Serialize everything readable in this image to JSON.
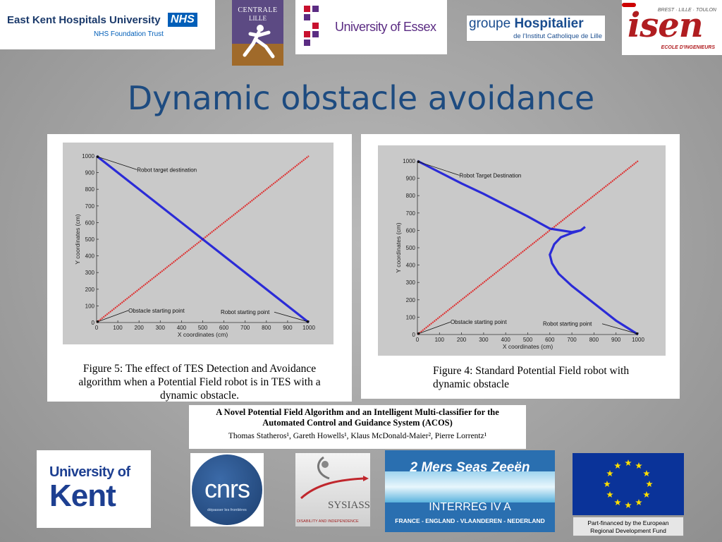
{
  "slide": {
    "title": "Dynamic obstacle avoidance"
  },
  "top_logos": {
    "ekhu": {
      "line1": "East Kent Hospitals University",
      "badge": "NHS",
      "line2": "NHS Foundation Trust"
    },
    "centrale": {
      "line1": "CENTRALE",
      "line2": "LILLE"
    },
    "essex": {
      "name": "University of Essex"
    },
    "ghicl": {
      "line1a": "groupe",
      "line1b": "Hospitalier",
      "line2": "de l'Institut Catholique de Lille"
    },
    "isen": {
      "tag": "BREST · LILLE · TOULON",
      "name": "isen",
      "sub": "ECOLE D'INGENIEURS"
    }
  },
  "figure_left": {
    "caption": [
      "Figure 5: The effect of TES Detection and Avoidance",
      "algorithm when a Potential Field robot is in TES with a",
      "dynamic obstacle."
    ],
    "xlabel": "X coordinates (cm)",
    "ylabel": "Y coordinates (cm)",
    "annotations": {
      "target": "Robot target destination",
      "obstacle": "Obstacle starting point",
      "robot": "Robot starting point"
    }
  },
  "figure_right": {
    "caption": [
      "Figure 4: Standard Potential Field robot with",
      "dynamic obstacle"
    ],
    "xlabel": "X coordinates (cm)",
    "ylabel": "Y coordinates (cm)",
    "annotations": {
      "target": "Robot Target Destination",
      "obstacle": "Obstacle starting point",
      "robot": "Robot starting point"
    }
  },
  "paper": {
    "title_line1": "A Novel Potential Field Algorithm and an Intelligent Multi-classifier for the",
    "title_line2": "Automated Control and Guidance System (ACOS)",
    "authors": "Thomas Statheros¹, Gareth Howells¹, Klaus McDonald-Maier², Pierre Lorrentz¹"
  },
  "bottom_logos": {
    "kent": {
      "line1": "University of",
      "line2": "Kent"
    },
    "cnrs": {
      "name": "cnrs",
      "tag": "dépasser les frontières"
    },
    "sysiass": {
      "name": "SYSIASS",
      "tag": "DISABILITY AND INDEPENDENCE"
    },
    "interreg": {
      "line1": "2 Mers Seas Zeeën",
      "line2": "INTERREG IV A",
      "line3": "FRANCE - ENGLAND - VLAANDEREN - NEDERLAND"
    },
    "eu": {
      "caption_line1": "Part-financed by the European",
      "caption_line2": "Regional Development Fund"
    }
  },
  "chart_data": [
    {
      "type": "line",
      "title": "",
      "xlabel": "X coordinates (cm)",
      "ylabel": "Y coordinates (cm)",
      "xlim": [
        0,
        1000
      ],
      "ylim": [
        0,
        1000
      ],
      "xticks": [
        0,
        100,
        200,
        300,
        400,
        500,
        600,
        700,
        800,
        900,
        1000
      ],
      "yticks": [
        0,
        100,
        200,
        300,
        400,
        500,
        600,
        700,
        800,
        900,
        1000
      ],
      "series": [
        {
          "color": "#e02020",
          "x": [
            0,
            1000
          ],
          "y": [
            0,
            1000
          ]
        },
        {
          "color": "#1a1ad8",
          "x": [
            1000,
            500,
            0
          ],
          "y": [
            0,
            500,
            1000
          ]
        }
      ],
      "annotations": [
        "Robot target destination",
        "Obstacle starting point",
        "Robot starting point"
      ]
    },
    {
      "type": "line",
      "title": "",
      "xlabel": "X coordinates (cm)",
      "ylabel": "Y coordinates (cm)",
      "xlim": [
        0,
        1000
      ],
      "ylim": [
        0,
        1000
      ],
      "xticks": [
        0,
        100,
        200,
        300,
        400,
        500,
        600,
        700,
        800,
        900,
        1000
      ],
      "yticks": [
        0,
        100,
        200,
        300,
        400,
        500,
        600,
        700,
        800,
        900,
        1000
      ],
      "series": [
        {
          "color": "#e02020",
          "x": [
            0,
            1000
          ],
          "y": [
            0,
            1000
          ]
        },
        {
          "color": "#1a1ad8",
          "x": [
            1000,
            900,
            800,
            700,
            640,
            610,
            600,
            620,
            650,
            700,
            740,
            760,
            740,
            700,
            600,
            500,
            400,
            300,
            200,
            100,
            0
          ],
          "y": [
            0,
            80,
            180,
            280,
            350,
            410,
            460,
            520,
            560,
            585,
            600,
            620,
            600,
            590,
            610,
            680,
            745,
            810,
            870,
            935,
            1000
          ]
        }
      ],
      "annotations": [
        "Robot Target Destination",
        "Obstacle starting point",
        "Robot starting point"
      ]
    }
  ],
  "colors": {
    "title": "#1d4b80",
    "nhs_blue": "#005eb8",
    "kent_blue": "#1d3f91",
    "eu_blue": "#0a3399",
    "eu_yellow": "#ffde00",
    "essex_purple": "#5b2c83"
  }
}
